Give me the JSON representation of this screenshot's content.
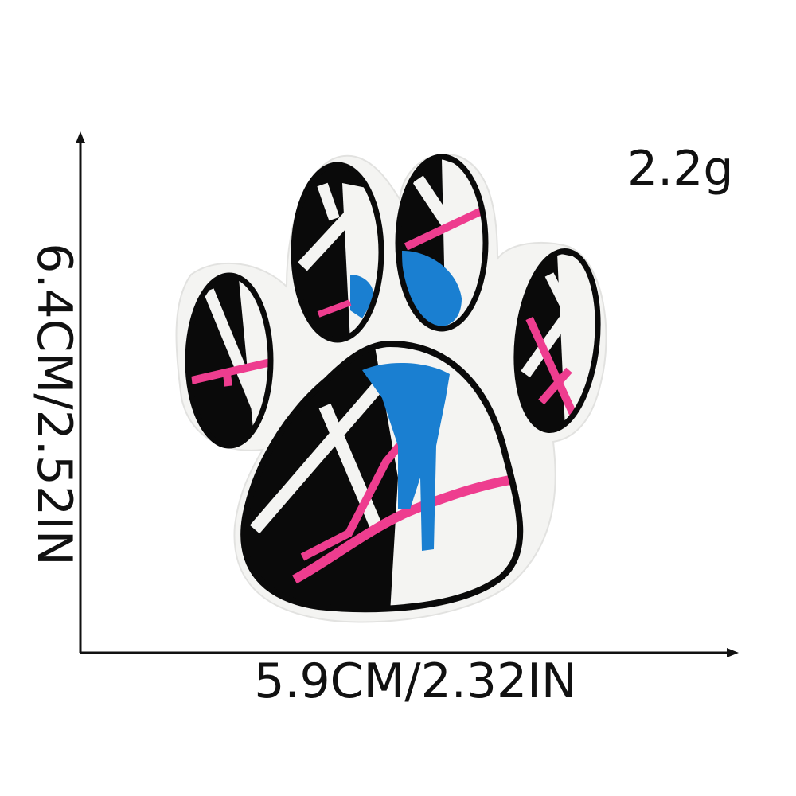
{
  "labels": {
    "weight": "2.2g",
    "width": "5.9CM/2.32IN",
    "height": "6.4CM/2.52IN"
  },
  "colors": {
    "outline": "#0a0a0a",
    "fabric": "#f4f4f2",
    "pink": "#ee3d8f",
    "blue": "#1a7fd1"
  },
  "image": {
    "subject": "paw-print-embroidered-patch"
  }
}
